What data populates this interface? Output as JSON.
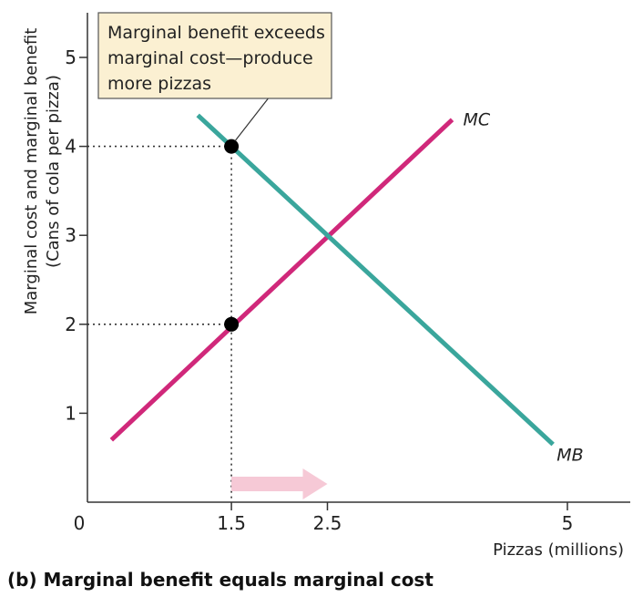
{
  "chart_data": {
    "type": "line",
    "title": "(b) Marginal benefit equals marginal cost",
    "xlabel": "Pizzas (millions)",
    "ylabel_lines": [
      "Marginal cost and marginal benefit",
      "(Cans of cola per pizza)"
    ],
    "xlim": [
      0,
      5.5
    ],
    "ylim": [
      0,
      5.5
    ],
    "x_ticks": [
      {
        "value": 0,
        "label": "0"
      },
      {
        "value": 1.5,
        "label": "1.5"
      },
      {
        "value": 2.5,
        "label": "2.5"
      },
      {
        "value": 5,
        "label": "5"
      }
    ],
    "y_ticks": [
      {
        "value": 1,
        "label": "1"
      },
      {
        "value": 2,
        "label": "2"
      },
      {
        "value": 3,
        "label": "3"
      },
      {
        "value": 4,
        "label": "4"
      },
      {
        "value": 5,
        "label": "5"
      }
    ],
    "series": [
      {
        "name": "MC",
        "color": "#d0287a",
        "points": [
          [
            0.25,
            0.7
          ],
          [
            3.8,
            4.3
          ]
        ]
      },
      {
        "name": "MB",
        "color": "#3aa69c",
        "points": [
          [
            1.15,
            4.35
          ],
          [
            4.85,
            0.65
          ]
        ]
      }
    ],
    "points": [
      {
        "x": 1.5,
        "y": 4,
        "series": "MB"
      },
      {
        "x": 1.5,
        "y": 2,
        "series": "MC"
      }
    ],
    "arrow": {
      "from": 1.5,
      "to": 2.5,
      "color": "#f6c9d6"
    },
    "callout": {
      "lines": [
        "Marginal benefit exceeds",
        "marginal cost—produce",
        "more pizzas"
      ],
      "fill": "#fbf0d2"
    }
  }
}
